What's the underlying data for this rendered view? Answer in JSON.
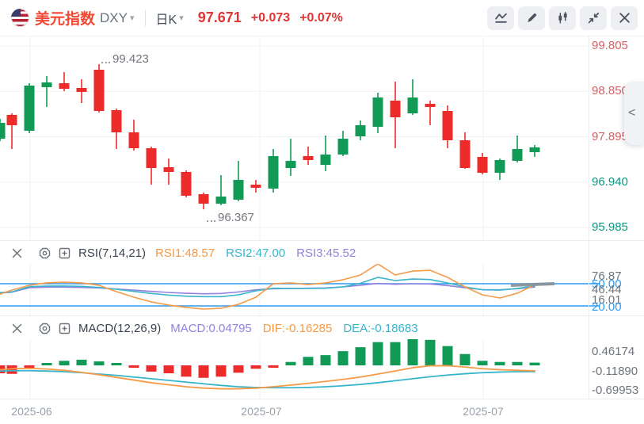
{
  "header": {
    "flag_icon": "us-flag-icon",
    "title": "美元指数",
    "symbol": "DXY",
    "caret": "▾",
    "period": "日K",
    "price": "97.671",
    "change": "+0.073",
    "change_pct": "+0.07%",
    "toolbar_icons": [
      "line-chart-icon",
      "pencil-icon",
      "candlestick-icon",
      "collapse-icon",
      "close-icon"
    ]
  },
  "price_axis": {
    "labels": [
      {
        "text": "99.805",
        "color": "#d65f66"
      },
      {
        "text": "98.850",
        "color": "#d65f66"
      },
      {
        "text": "97.895",
        "color": "#d65f66"
      },
      {
        "text": "96.940",
        "color": "#089981"
      },
      {
        "text": "95.985",
        "color": "#089981"
      }
    ],
    "collapse_handle": "<"
  },
  "main_chart": {
    "annotations": [
      {
        "text": "99.423"
      },
      {
        "text": "96.367"
      }
    ]
  },
  "rsi": {
    "icons": [
      "close-icon",
      "settings-icon",
      "add-icon"
    ],
    "title": "RSI(7,14,21)",
    "values": [
      {
        "text": "RSI1:48.57",
        "color": "#f59a47"
      },
      {
        "text": "RSI2:47.00",
        "color": "#38b4cb"
      },
      {
        "text": "RSI3:45.52",
        "color": "#9182df"
      }
    ],
    "axis_labels": [
      {
        "text": "76.87",
        "color": "#6f747c"
      },
      {
        "text": "50.00",
        "color": "#2f9bf4"
      },
      {
        "text": "46.44",
        "color": "#6f747c"
      },
      {
        "text": "16.01",
        "color": "#6f747c"
      },
      {
        "text": "20.00",
        "color": "#2f9bf4"
      }
    ]
  },
  "macd": {
    "icons": [
      "close-icon",
      "settings-icon",
      "add-icon"
    ],
    "title": "MACD(12,26,9)",
    "values": [
      {
        "text": "MACD:0.04795",
        "color": "#9182df"
      },
      {
        "text": "DIF:-0.16285",
        "color": "#f59a47"
      },
      {
        "text": "DEA:-0.18683",
        "color": "#38b4cb"
      }
    ],
    "axis_labels": [
      {
        "text": "0.46174",
        "color": "#6f747c"
      },
      {
        "text": "-0.11890",
        "color": "#6f747c"
      },
      {
        "text": "-0.69953",
        "color": "#6f747c"
      }
    ]
  },
  "x_axis": [
    "2025-06",
    "2025-07",
    "2025-07"
  ],
  "colors": {
    "up": "#119a55",
    "down": "#ee2b2b",
    "rsi1": "#f59a47",
    "rsi2": "#38b4cb",
    "rsi3": "#9182df",
    "band_blue": "#2f9bf4",
    "grid": "#f1f2f4",
    "gray_segment": "#878f96"
  },
  "chart_data": {
    "type": "candlestick",
    "title": "美元指数 DXY 日K",
    "y_ticks": [
      99.805,
      98.85,
      97.895,
      96.94,
      95.985
    ],
    "x_tick_labels": [
      "2025-06",
      "2025-07",
      "2025-07"
    ],
    "high_annotation": 99.423,
    "low_annotation": 96.367,
    "last_price": 97.671,
    "candles_ohlc": [
      [
        97.853,
        98.27,
        97.803,
        98.187
      ],
      [
        98.354,
        98.387,
        97.636,
        98.137
      ],
      [
        98.02,
        99.021,
        97.97,
        98.971
      ],
      [
        98.938,
        99.171,
        98.521,
        99.038
      ],
      [
        99.021,
        99.255,
        98.854,
        98.904
      ],
      [
        98.921,
        99.104,
        98.604,
        98.838
      ],
      [
        99.305,
        99.423,
        98.404,
        98.437
      ],
      [
        98.454,
        98.487,
        97.636,
        97.987
      ],
      [
        97.987,
        98.254,
        97.603,
        97.653
      ],
      [
        97.653,
        97.686,
        96.886,
        97.236
      ],
      [
        97.253,
        97.436,
        96.886,
        97.153
      ],
      [
        97.153,
        97.186,
        96.619,
        96.653
      ],
      [
        96.686,
        96.719,
        96.367,
        96.486
      ],
      [
        96.486,
        97.086,
        96.453,
        96.636
      ],
      [
        96.57,
        97.387,
        96.536,
        96.986
      ],
      [
        96.886,
        96.986,
        96.719,
        96.82
      ],
      [
        96.803,
        97.637,
        96.719,
        97.487
      ],
      [
        97.236,
        97.853,
        97.07,
        97.387
      ],
      [
        97.487,
        97.687,
        97.303,
        97.403
      ],
      [
        97.303,
        97.92,
        97.17,
        97.52
      ],
      [
        97.52,
        98.02,
        97.487,
        97.853
      ],
      [
        97.903,
        98.237,
        97.82,
        98.137
      ],
      [
        98.104,
        98.821,
        97.97,
        98.72
      ],
      [
        98.654,
        99.054,
        97.653,
        98.304
      ],
      [
        98.387,
        99.104,
        98.354,
        98.72
      ],
      [
        98.587,
        98.654,
        98.137,
        98.52
      ],
      [
        98.437,
        98.554,
        97.653,
        97.82
      ],
      [
        97.82,
        97.987,
        97.22,
        97.236
      ],
      [
        97.47,
        97.553,
        97.103,
        97.136
      ],
      [
        97.136,
        97.436,
        96.986,
        97.403
      ],
      [
        97.387,
        97.92,
        97.353,
        97.636
      ],
      [
        97.57,
        97.72,
        97.47,
        97.671
      ]
    ],
    "indicators": {
      "rsi": {
        "params": [
          7,
          14,
          21
        ],
        "last": [
          48.57,
          47.0,
          45.52
        ],
        "bands": [
          50,
          20
        ],
        "scale": [
          76.87,
          46.44,
          16.01
        ],
        "rsi1": [
          36,
          41.4,
          47.9,
          51.1,
          52.1,
          51.1,
          47.9,
          39.3,
          31.8,
          25.4,
          21.1,
          17.9,
          15.7,
          16.8,
          22.1,
          31.8,
          50,
          51.1,
          48.9,
          51.1,
          55.4,
          61.8,
          76.87,
          61.8,
          67.1,
          68.2,
          58.6,
          45.7,
          35,
          30.7,
          37.1,
          48.57
        ],
        "rsi2": [
          38,
          39,
          46,
          46.8,
          46.8,
          46.4,
          45,
          42.5,
          39.6,
          36.8,
          34.6,
          33.2,
          32.5,
          32.5,
          35,
          40.4,
          43.9,
          43.6,
          43.6,
          43.9,
          45.7,
          50.7,
          58.6,
          54.3,
          56.4,
          55.7,
          51.1,
          45.7,
          41.8,
          41.4,
          43.6,
          47.0
        ],
        "rsi3": [
          37.5,
          38.6,
          44.6,
          45.4,
          45.4,
          45,
          44.3,
          42.9,
          41.4,
          39.6,
          38.2,
          37.1,
          36.4,
          36.8,
          38.9,
          41.8,
          43.2,
          43.6,
          43.9,
          44.3,
          45.7,
          47.9,
          50.4,
          49.3,
          50,
          49.6,
          47.5,
          44.6,
          42.1,
          41.8,
          43.2,
          45.52
        ]
      },
      "macd": {
        "params": [
          12,
          26,
          9
        ],
        "last": {
          "macd": 0.04795,
          "dif": -0.16285,
          "dea": -0.18683
        },
        "scale": [
          0.46174,
          -0.1189,
          -0.69953
        ],
        "histogram": [
          -0.14,
          -0.15,
          -0.04,
          0.04,
          0.08,
          0.1,
          0.07,
          0.04,
          -0.04,
          -0.11,
          -0.14,
          -0.2,
          -0.22,
          -0.2,
          -0.13,
          -0.06,
          -0.04,
          0.06,
          0.15,
          0.18,
          0.25,
          0.32,
          0.41,
          0.41,
          0.462,
          0.45,
          0.34,
          0.2,
          0.08,
          0.06,
          0.06,
          0.048
        ],
        "dif": [
          -0.13,
          -0.1,
          -0.09,
          -0.11,
          -0.15,
          -0.21,
          -0.28,
          -0.36,
          -0.44,
          -0.52,
          -0.58,
          -0.64,
          -0.68,
          -0.7,
          -0.7,
          -0.68,
          -0.64,
          -0.59,
          -0.54,
          -0.48,
          -0.42,
          -0.35,
          -0.26,
          -0.17,
          -0.07,
          -0.01,
          -0.01,
          -0.05,
          -0.1,
          -0.13,
          -0.15,
          -0.16285
        ],
        "dea": [
          -0.17,
          -0.16,
          -0.16,
          -0.17,
          -0.19,
          -0.22,
          -0.26,
          -0.3,
          -0.35,
          -0.4,
          -0.45,
          -0.5,
          -0.55,
          -0.6,
          -0.64,
          -0.66,
          -0.67,
          -0.67,
          -0.66,
          -0.64,
          -0.61,
          -0.57,
          -0.52,
          -0.46,
          -0.4,
          -0.34,
          -0.29,
          -0.25,
          -0.22,
          -0.2,
          -0.19,
          -0.18683
        ]
      }
    }
  }
}
